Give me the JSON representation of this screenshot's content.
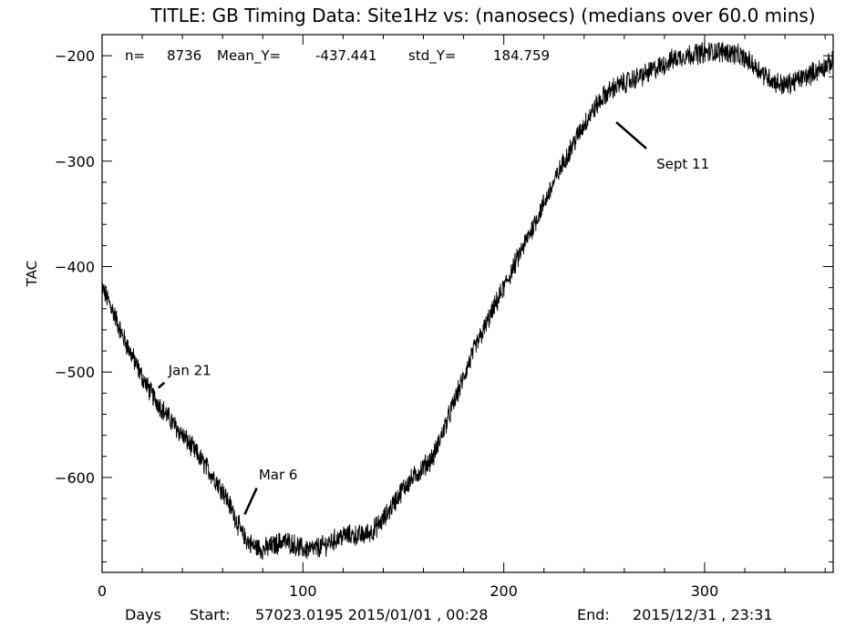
{
  "chart_data": {
    "type": "line",
    "title": "TITLE: GB Timing Data: Site1Hz vs: (nanosecs) (medians over 60.0 mins)",
    "stats": {
      "n_label": "n=",
      "n_value": "8736",
      "mean_label": "Mean_Y=",
      "mean_value": "-437.441",
      "std_label": "std_Y=",
      "std_value": "184.759"
    },
    "ylabel": "TAC",
    "xlabel": "Days",
    "footer": {
      "start_label": "Start:",
      "start_value": "57023.0195 2015/01/01 , 00:28",
      "end_label": "End:",
      "end_value": "2015/12/31 , 23:31"
    },
    "xlim": [
      0,
      364.0
    ],
    "ylim": [
      -690,
      -180
    ],
    "xticks": [
      0,
      100,
      200,
      300
    ],
    "xtick_labels": [
      "0",
      "100",
      "200",
      "300"
    ],
    "yticks": [
      -200,
      -300,
      -400,
      -500,
      -600
    ],
    "ytick_labels": [
      "−200",
      "−300",
      "−400",
      "−500",
      "−600"
    ],
    "grid": false,
    "series": [
      {
        "color": "#000000",
        "noise_amplitude": 9,
        "x": [
          0,
          5,
          10,
          15,
          20,
          25,
          30,
          35,
          40,
          45,
          50,
          55,
          60,
          65,
          70,
          75,
          80,
          85,
          90,
          95,
          100,
          105,
          110,
          115,
          120,
          125,
          130,
          135,
          140,
          145,
          150,
          155,
          160,
          165,
          170,
          175,
          180,
          185,
          190,
          195,
          200,
          205,
          210,
          215,
          220,
          225,
          230,
          235,
          240,
          245,
          250,
          255,
          260,
          265,
          270,
          275,
          280,
          285,
          290,
          295,
          300,
          305,
          310,
          315,
          320,
          325,
          330,
          335,
          340,
          345,
          350,
          355,
          360,
          364
        ],
        "y": [
          -420,
          -440,
          -465,
          -485,
          -505,
          -522,
          -535,
          -548,
          -560,
          -572,
          -585,
          -598,
          -612,
          -632,
          -655,
          -665,
          -668,
          -665,
          -660,
          -663,
          -668,
          -668,
          -665,
          -660,
          -655,
          -655,
          -655,
          -650,
          -640,
          -625,
          -610,
          -600,
          -590,
          -580,
          -555,
          -530,
          -505,
          -480,
          -460,
          -440,
          -420,
          -400,
          -380,
          -360,
          -340,
          -320,
          -300,
          -282,
          -265,
          -250,
          -238,
          -230,
          -226,
          -222,
          -218,
          -213,
          -208,
          -203,
          -200,
          -198,
          -197,
          -196,
          -196,
          -198,
          -203,
          -210,
          -218,
          -225,
          -228,
          -224,
          -220,
          -215,
          -210,
          -206
        ]
      }
    ],
    "annotations": [
      {
        "text": "Jan 21",
        "x": 28,
        "y": -515,
        "line_to": [
          31,
          -510
        ],
        "label_at": [
          33,
          -503
        ]
      },
      {
        "text": "Mar 6",
        "x": 71,
        "y": -635,
        "line_to": [
          77,
          -610
        ],
        "label_at": [
          78,
          -602
        ]
      },
      {
        "text": "Sept 11",
        "x": 256,
        "y": -263,
        "line_to": [
          271,
          -288
        ],
        "label_at": [
          276,
          -307
        ]
      }
    ]
  }
}
